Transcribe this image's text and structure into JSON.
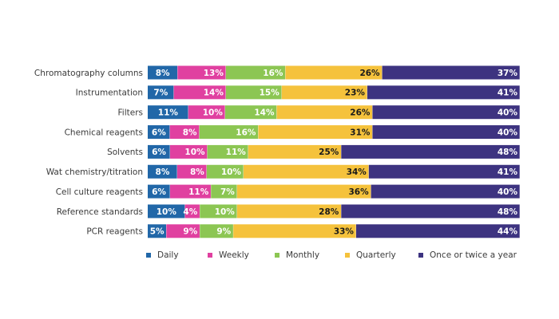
{
  "chart_data": {
    "type": "bar",
    "orientation": "horizontal",
    "stacked": true,
    "title": "",
    "xlabel": "",
    "ylabel": "",
    "xlim": [
      0,
      100
    ],
    "grid": false,
    "legend_position": "bottom",
    "categories": [
      "Chromatography columns",
      "Instrumentation",
      "Filters",
      "Chemical reagents",
      "Solvents",
      "Wat chemistry/titration",
      "Cell culture reagents",
      "Reference standards",
      "PCR reagents"
    ],
    "series": [
      {
        "name": "Daily",
        "color": "#2167a8",
        "label_color": "#ffffff",
        "values": [
          8,
          7,
          11,
          6,
          6,
          8,
          6,
          10,
          5
        ]
      },
      {
        "name": "Weekly",
        "color": "#e040a0",
        "label_color": "#ffffff",
        "values": [
          13,
          14,
          10,
          8,
          10,
          8,
          11,
          4,
          9
        ]
      },
      {
        "name": "Monthly",
        "color": "#8cc653",
        "label_color": "#ffffff",
        "values": [
          16,
          15,
          14,
          16,
          11,
          10,
          7,
          10,
          9
        ]
      },
      {
        "name": "Quarterly",
        "color": "#f5c23c",
        "label_color": "#1a1a1a",
        "values": [
          26,
          23,
          26,
          31,
          25,
          34,
          36,
          28,
          33
        ]
      },
      {
        "name": "Once or twice a year",
        "color": "#3d3380",
        "label_color": "#ffffff",
        "values": [
          37,
          41,
          40,
          40,
          48,
          41,
          40,
          48,
          44
        ]
      }
    ]
  }
}
